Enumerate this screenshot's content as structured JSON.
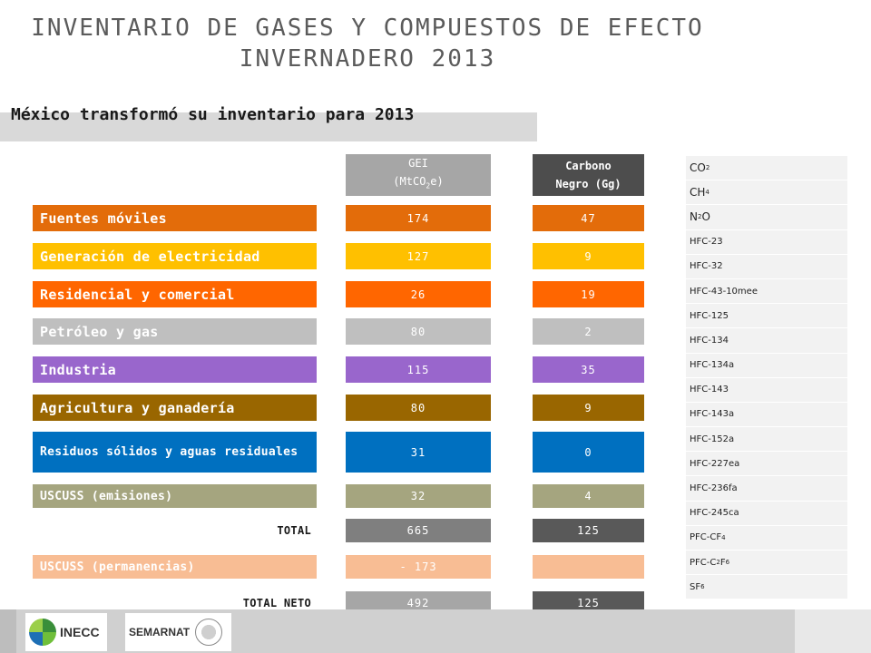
{
  "title_line1": "INVENTARIO DE GASES Y COMPUESTOS DE EFECTO",
  "title_line2": "INVERNADERO 2013",
  "subtitle": "México transformó su inventario para 2013",
  "headers": {
    "gei_line1": "GEI",
    "gei_line2": "(MtCO",
    "gei_sub": "2",
    "gei_end": "e)",
    "cb_line1": "Carbono",
    "cb_line2": "Negro (Gg)"
  },
  "rows": [
    {
      "label": "Fuentes móviles",
      "gei": "174",
      "cb": "47",
      "color": "#e36c0a"
    },
    {
      "label": "Generación de electricidad",
      "gei": "127",
      "cb": "9",
      "color": "#ffc000"
    },
    {
      "label": "Residencial y comercial",
      "gei": "26",
      "cb": "19",
      "color": "#ff6600"
    },
    {
      "label": "Petróleo y gas",
      "gei": "80",
      "cb": "2",
      "color": "#bfbfbf"
    },
    {
      "label": "Industria",
      "gei": "115",
      "cb": "35",
      "color": "#9966cc"
    },
    {
      "label": "Agricultura y ganadería",
      "gei": "80",
      "cb": "9",
      "color": "#996600"
    },
    {
      "label": "Residuos sólidos y aguas residuales",
      "gei": "31",
      "cb": "0",
      "color": "#0070c0"
    },
    {
      "label": "USCUSS (emisiones)",
      "gei": "32",
      "cb": "4",
      "color": "#a5a57f"
    },
    {
      "label": "TOTAL",
      "gei": "665",
      "cb": "125"
    },
    {
      "label": "USCUSS (permanencias)",
      "gei": "- 173",
      "cb": "",
      "color": "#f8bd94"
    },
    {
      "label": "TOTAL NETO",
      "gei": "492",
      "cb": "125"
    }
  ],
  "gases": [
    {
      "base": "CO",
      "sub": "2",
      "rest": ""
    },
    {
      "base": "CH",
      "sub": "4",
      "rest": ""
    },
    {
      "base": "N",
      "sub": "2",
      "rest": "O"
    },
    {
      "base": "HFC-23",
      "sub": "",
      "rest": ""
    },
    {
      "base": "HFC-32",
      "sub": "",
      "rest": ""
    },
    {
      "base": "HFC-43-10mee",
      "sub": "",
      "rest": ""
    },
    {
      "base": "HFC-125",
      "sub": "",
      "rest": ""
    },
    {
      "base": "HFC-134",
      "sub": "",
      "rest": ""
    },
    {
      "base": "HFC-134a",
      "sub": "",
      "rest": ""
    },
    {
      "base": "HFC-143",
      "sub": "",
      "rest": ""
    },
    {
      "base": "HFC-143a",
      "sub": "",
      "rest": ""
    },
    {
      "base": "HFC-152a",
      "sub": "",
      "rest": ""
    },
    {
      "base": "HFC-227ea",
      "sub": "",
      "rest": ""
    },
    {
      "base": "HFC-236fa",
      "sub": "",
      "rest": ""
    },
    {
      "base": "HFC-245ca",
      "sub": "",
      "rest": ""
    },
    {
      "base": "PFC-CF",
      "sub": "4",
      "rest": ""
    },
    {
      "base": "PFC-C",
      "sub": "2",
      "rest": "F",
      "sub2": "6"
    },
    {
      "base": "SF",
      "sub": "6",
      "rest": ""
    }
  ],
  "logos": {
    "inecc": "INECC",
    "semarnat": "SEMARNAT"
  },
  "colors": {
    "gei_total": "#7f7f7f",
    "cb_total": "#595959",
    "gei_neto": "#a6a6a6"
  }
}
